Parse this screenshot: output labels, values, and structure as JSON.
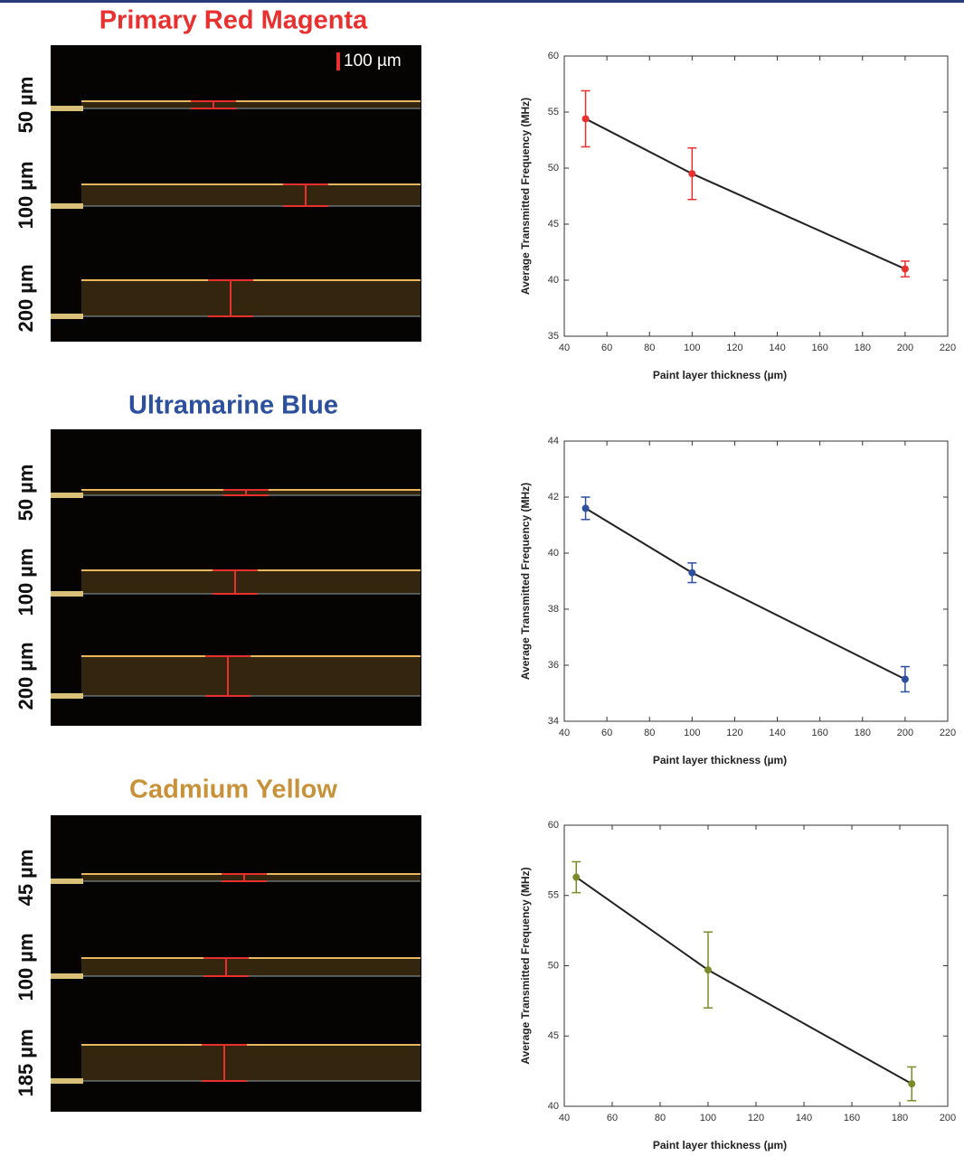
{
  "panels": [
    {
      "title": "Primary Red Magenta",
      "labels": [
        "50 µm",
        "100 µm",
        "200 µm"
      ],
      "color": "#e8312f"
    },
    {
      "title": "Ultramarine Blue",
      "labels": [
        "50 µm",
        "100 µm",
        "200 µm"
      ],
      "color": "#2c4f9e"
    },
    {
      "title": "Cadmium Yellow",
      "labels": [
        "45 µm",
        "100 µm",
        "185 µm"
      ],
      "color": "#c8923a"
    }
  ],
  "scale_bar": "100 µm",
  "chart_data": [
    {
      "type": "line",
      "x": [
        50,
        100,
        200
      ],
      "values": [
        54.4,
        49.5,
        41.0
      ],
      "errors": [
        2.5,
        2.3,
        0.7
      ],
      "color": "#e8312f",
      "line_color": "#222222",
      "xlim": [
        40,
        220
      ],
      "xticks": [
        40,
        60,
        80,
        100,
        120,
        140,
        160,
        180,
        200,
        220
      ],
      "ylim": [
        35,
        60
      ],
      "yticks": [
        35,
        40,
        45,
        50,
        55,
        60
      ],
      "xlabel": "Paint layer thickness (µm)",
      "ylabel": "Average Transmitted Frequency (MHz)"
    },
    {
      "type": "line",
      "x": [
        50,
        100,
        200
      ],
      "values": [
        41.6,
        39.3,
        35.5
      ],
      "errors": [
        0.4,
        0.35,
        0.45
      ],
      "color": "#2c4f9e",
      "line_color": "#222222",
      "xlim": [
        40,
        220
      ],
      "xticks": [
        40,
        60,
        80,
        100,
        120,
        140,
        160,
        180,
        200,
        220
      ],
      "ylim": [
        34,
        44
      ],
      "yticks": [
        34,
        36,
        38,
        40,
        42,
        44
      ],
      "xlabel": "Paint layer thickness (µm)",
      "ylabel": "Average Transmitted Frequency (MHz)"
    },
    {
      "type": "line",
      "x": [
        45,
        100,
        185
      ],
      "values": [
        56.3,
        49.7,
        41.6
      ],
      "errors": [
        1.1,
        2.7,
        1.2
      ],
      "color": "#7d8a2a",
      "line_color": "#222222",
      "xlim": [
        40,
        200
      ],
      "xticks": [
        40,
        60,
        80,
        100,
        120,
        140,
        160,
        180,
        200
      ],
      "ylim": [
        40,
        60
      ],
      "yticks": [
        40,
        45,
        50,
        55,
        60
      ],
      "xlabel": "Paint layer thickness (µm)",
      "ylabel": "Average Transmitted Frequency (MHz)"
    }
  ]
}
